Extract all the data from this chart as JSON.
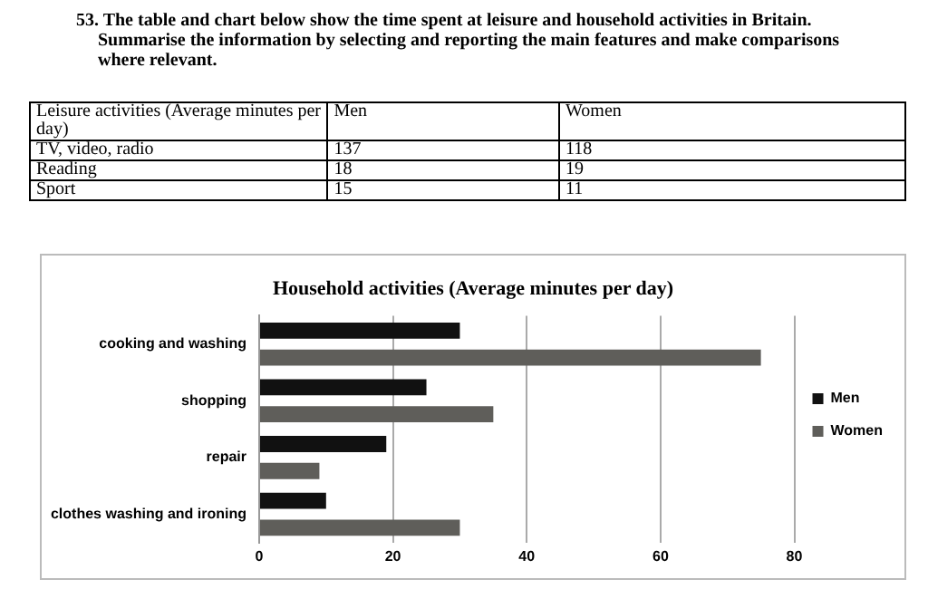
{
  "chart_data": [
    {
      "type": "other",
      "title": "53. The table and chart below show the time spent at leisure and household activities in Britain. Summarise the information by selecting and reporting the main features and make comparisons where relevant.",
      "xlabel": "Leisure activities (Average minutes per day)",
      "categories": [
        "TV, video, radio",
        "Reading",
        "Sport"
      ],
      "series": [
        {
          "name": "Men",
          "values": [
            137,
            18,
            15
          ]
        },
        {
          "name": "Women",
          "values": [
            118,
            19,
            11
          ]
        }
      ],
      "data_labels": true
    },
    {
      "type": "bar",
      "orientation": "horizontal",
      "title": "Household activities (Average minutes per day)",
      "categories": [
        "cooking and washing",
        "shopping",
        "repair",
        "clothes washing and ironing"
      ],
      "series": [
        {
          "name": "Men",
          "color": "#111111",
          "values": [
            30,
            25,
            19,
            10
          ]
        },
        {
          "name": "Women",
          "color": "#5f5e5a",
          "values": [
            75,
            35,
            9,
            30
          ]
        }
      ],
      "xlim": [
        0,
        80
      ],
      "xticks": [
        0,
        20,
        40,
        60,
        80
      ],
      "grid": "x",
      "legend": "right"
    }
  ]
}
